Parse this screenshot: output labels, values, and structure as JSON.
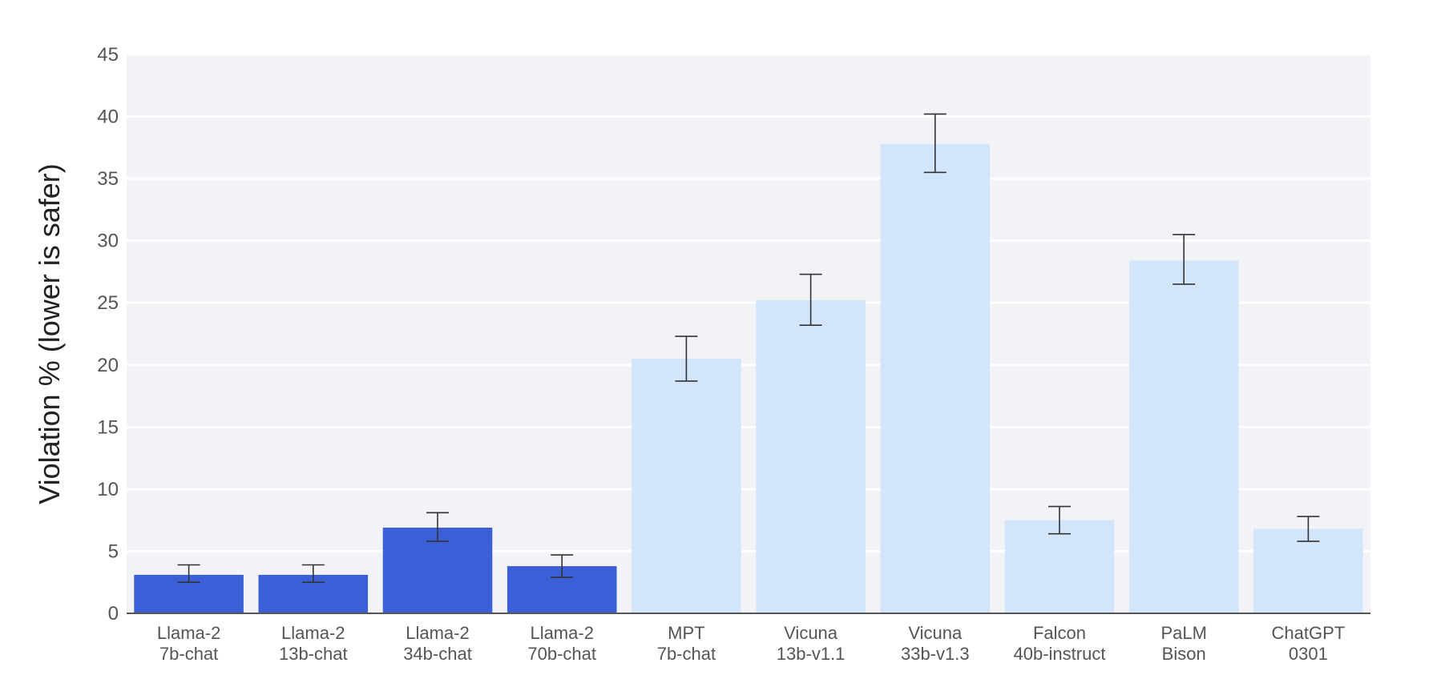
{
  "chart_data": {
    "type": "bar",
    "title": "",
    "xlabel": "",
    "ylabel": "Violation % (lower is safer)",
    "ylim": [
      0,
      45
    ],
    "yticks": [
      0,
      5,
      10,
      15,
      20,
      25,
      30,
      35,
      40,
      45
    ],
    "grid": true,
    "categories": [
      [
        "Llama-2",
        "7b-chat"
      ],
      [
        "Llama-2",
        "13b-chat"
      ],
      [
        "Llama-2",
        "34b-chat"
      ],
      [
        "Llama-2",
        "70b-chat"
      ],
      [
        "MPT",
        "7b-chat"
      ],
      [
        "Vicuna",
        "13b-v1.1"
      ],
      [
        "Vicuna",
        "33b-v1.3"
      ],
      [
        "Falcon",
        "40b-instruct"
      ],
      [
        "PaLM",
        "Bison"
      ],
      [
        "ChatGPT",
        "0301"
      ]
    ],
    "values": [
      3.1,
      3.1,
      6.9,
      3.8,
      20.5,
      25.2,
      37.8,
      7.5,
      28.4,
      6.8
    ],
    "error_low": [
      2.5,
      2.5,
      5.8,
      2.9,
      18.7,
      23.2,
      35.5,
      6.4,
      26.5,
      5.8
    ],
    "error_high": [
      3.9,
      3.9,
      8.1,
      4.7,
      22.3,
      27.3,
      40.2,
      8.6,
      30.5,
      7.8
    ],
    "colors": [
      "#3b5fd6",
      "#3b5fd6",
      "#3b5fd6",
      "#3b5fd6",
      "#d3e5fb",
      "#d3e5fb",
      "#d3e5fb",
      "#d3e5fb",
      "#d3e5fb",
      "#d3e5fb"
    ],
    "plot_background": "#f2f3f7",
    "grid_color": "#ffffff",
    "axis_color": "#555555",
    "error_bar_color": "#333333"
  }
}
